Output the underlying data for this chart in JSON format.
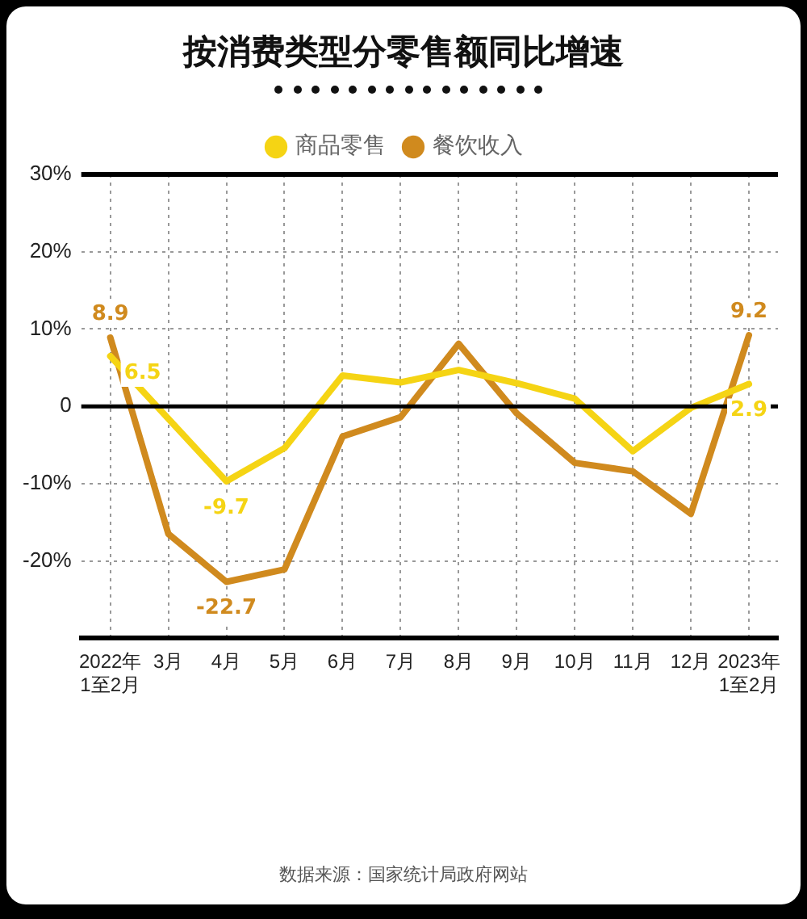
{
  "chart_data": {
    "type": "line",
    "title": "按消费类型分零售额同比增速",
    "categories": [
      "2022年\n1至2月",
      "3月",
      "4月",
      "5月",
      "6月",
      "7月",
      "8月",
      "9月",
      "10月",
      "11月",
      "12月",
      "2023年\n1至2月"
    ],
    "series": [
      {
        "name": "商品零售",
        "color": "#f5d414",
        "values": [
          6.5,
          -1.6,
          -9.7,
          -5.4,
          4.0,
          3.1,
          4.7,
          3.0,
          1.0,
          -5.8,
          -0.2,
          2.9
        ],
        "value_labels": [
          "6.5",
          null,
          "-9.7",
          null,
          null,
          null,
          null,
          null,
          null,
          null,
          null,
          "2.9"
        ]
      },
      {
        "name": "餐饮收入",
        "color": "#d08a1e",
        "values": [
          8.9,
          -16.5,
          -22.7,
          -21.1,
          -3.9,
          -1.4,
          8.1,
          -0.9,
          -7.3,
          -8.4,
          -13.9,
          9.2
        ],
        "value_labels": [
          "8.9",
          null,
          "-22.7",
          null,
          null,
          null,
          null,
          null,
          null,
          null,
          null,
          "9.2"
        ]
      }
    ],
    "ylim": [
      -30,
      30
    ],
    "yticks": [
      {
        "value": -30,
        "label": null
      },
      {
        "value": -20,
        "label": "-20%"
      },
      {
        "value": -10,
        "label": "-10%"
      },
      {
        "value": 0,
        "label": "0"
      },
      {
        "value": 10,
        "label": "10%"
      },
      {
        "value": 20,
        "label": "20%"
      },
      {
        "value": 30,
        "label": "30%"
      }
    ],
    "ref_lines": [
      {
        "axis": "y",
        "value": 0,
        "color": "#000000"
      }
    ],
    "grid": true,
    "legend": "top",
    "marker": "none",
    "line_style": "solid",
    "annotations": [
      "数据来源：国家统计局政府网站"
    ]
  }
}
